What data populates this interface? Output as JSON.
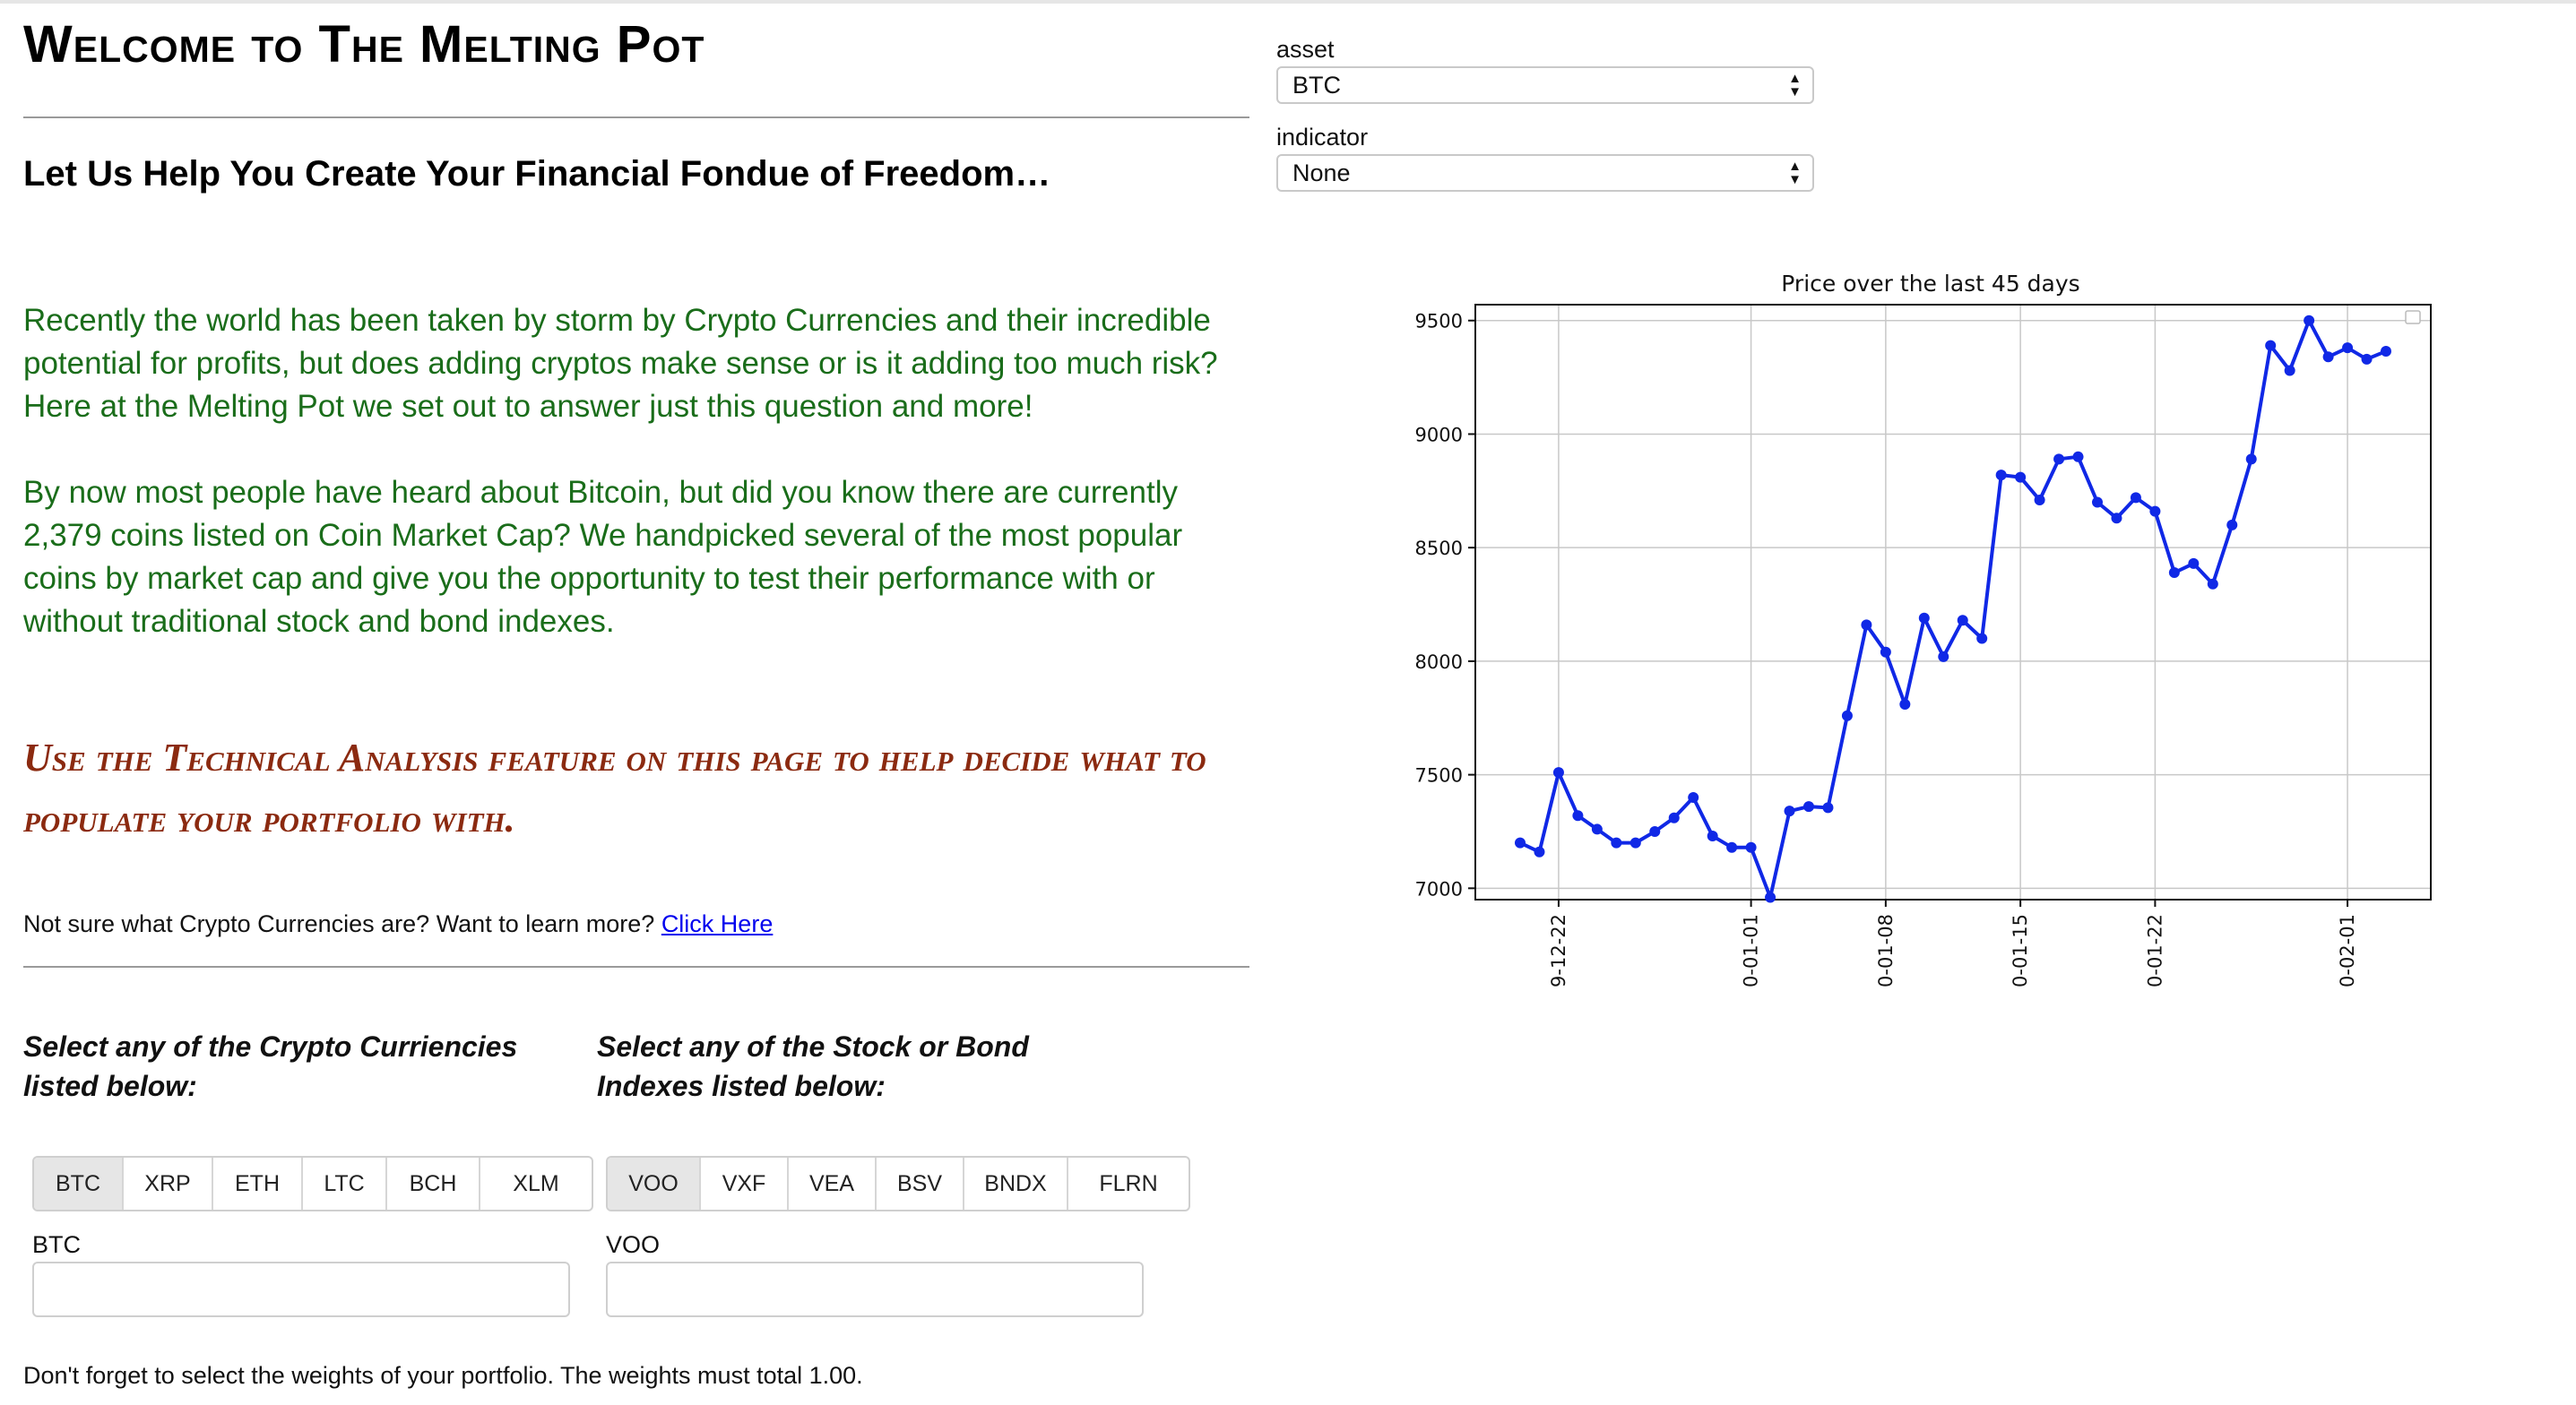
{
  "header": {
    "title": "Welcome to The Melting Pot",
    "subtitle": "Let Us Help You Create Your Financial Fondue of Freedom…"
  },
  "intro": {
    "p1": "Recently the world has been taken by storm by Crypto Currencies and their incredible potential for profits, but does adding cryptos make sense or is it adding too much risk? Here at the Melting Pot we set out to answer just this question and more!",
    "p2": "By now most people have heard about Bitcoin, but did you know there are currently 2,379 coins listed on Coin Market Cap? We handpicked several of the most popular coins by market cap and give you the opportunity to test their performance with or without traditional stock and bond indexes."
  },
  "technical_note": "Use the Technical Analysis feature on this page to help decide what to populate your portfolio with.",
  "learn_more": {
    "text": "Not sure what Crypto Currencies are? Want to learn more?",
    "link": "Click Here"
  },
  "crypto": {
    "label": "Select any of the Crypto Curriencies listed below:",
    "options": [
      "BTC",
      "XRP",
      "ETH",
      "LTC",
      "BCH",
      "XLM"
    ],
    "selected": "BTC",
    "weight_label": "BTC",
    "weight_value": ""
  },
  "indexes": {
    "label": "Select any of the Stock or Bond Indexes listed below:",
    "options": [
      "VOO",
      "VXF",
      "VEA",
      "BSV",
      "BNDX",
      "FLRN"
    ],
    "selected": "VOO",
    "weight_label": "VOO",
    "weight_value": ""
  },
  "footer_note": "Don't forget to select the weights of your portfolio. The weights must total 1.00.",
  "controls": {
    "asset_label": "asset",
    "asset_value": "BTC",
    "indicator_label": "indicator",
    "indicator_value": "None"
  },
  "chart_data": {
    "type": "line",
    "title": "Price over the last 45 days",
    "xlabel": "",
    "ylabel": "",
    "ylim": [
      6950,
      9570
    ],
    "grid": true,
    "legend": "top-right (empty)",
    "series_color": "#1028e6",
    "x_ticks": [
      "9-12-22",
      "0-01-01",
      "0-01-08",
      "0-01-15",
      "0-01-22",
      "0-02-01"
    ],
    "y_ticks": [
      7000,
      7500,
      8000,
      8500,
      9000,
      9500
    ],
    "x_tick_index": [
      2,
      12,
      19,
      26,
      33,
      43
    ],
    "values": [
      7200,
      7160,
      7510,
      7320,
      7260,
      7200,
      7200,
      7250,
      7310,
      7400,
      7230,
      7180,
      7180,
      6960,
      7340,
      7360,
      7355,
      7760,
      8160,
      8040,
      7810,
      8190,
      8020,
      8180,
      8100,
      8820,
      8810,
      8710,
      8890,
      8900,
      8700,
      8630,
      8720,
      8660,
      8390,
      8430,
      8340,
      8600,
      8890,
      9390,
      9280,
      9500,
      9340,
      9380,
      9330,
      9365
    ]
  }
}
